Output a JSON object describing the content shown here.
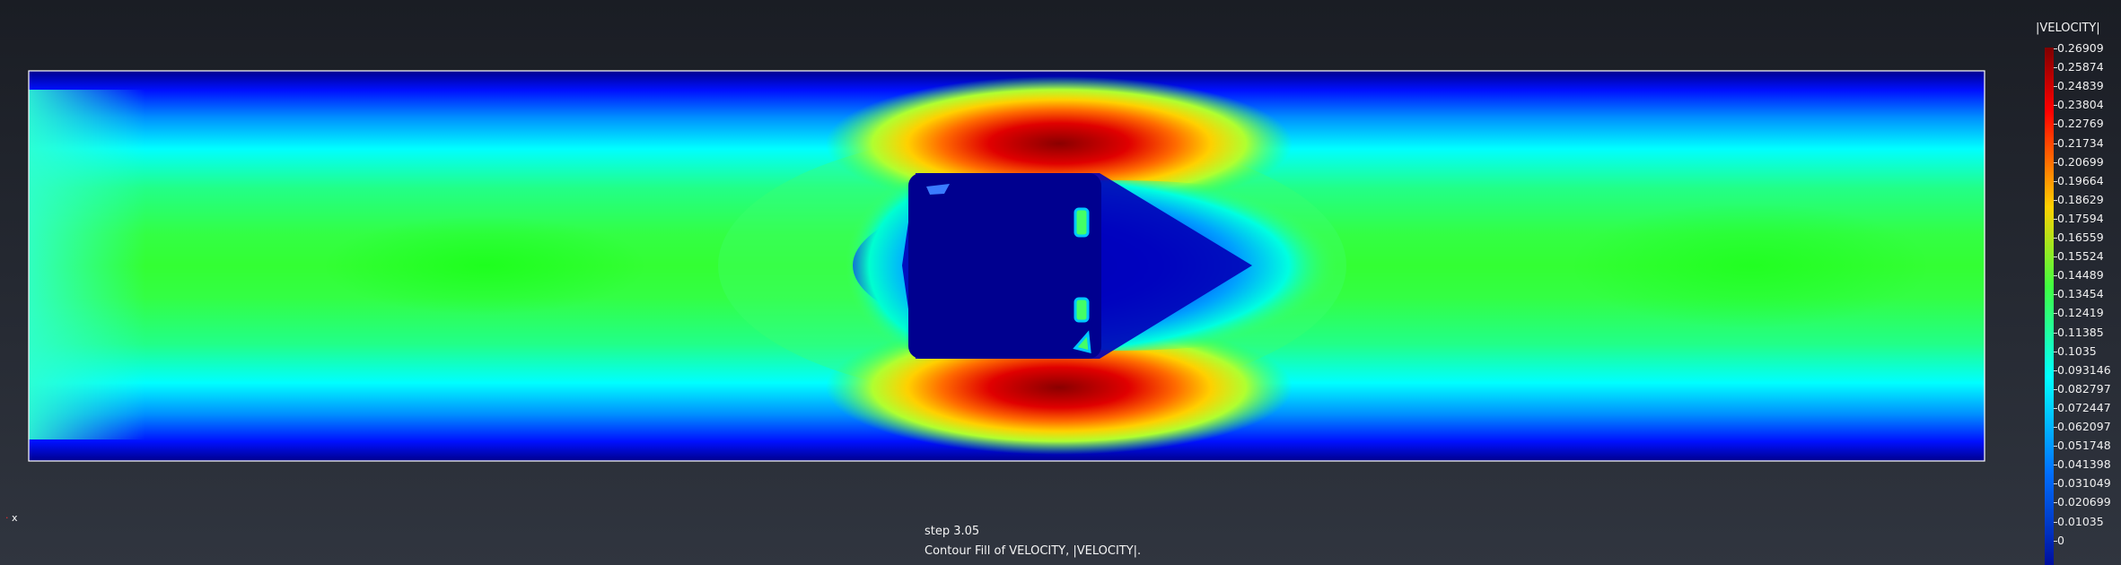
{
  "legend": {
    "title": "|VELOCITY|",
    "labels": [
      "0.26909",
      "0.25874",
      "0.24839",
      "0.23804",
      "0.22769",
      "0.21734",
      "0.20699",
      "0.19664",
      "0.18629",
      "0.17594",
      "0.16559",
      "0.15524",
      "0.14489",
      "0.13454",
      "0.12419",
      "0.11385",
      "0.1035",
      "0.093146",
      "0.082797",
      "0.072447",
      "0.062097",
      "0.051748",
      "0.041398",
      "0.031049",
      "0.020699",
      "0.01035",
      "0"
    ]
  },
  "footer": {
    "step": "step 3.05",
    "description": "Contour Fill of VELOCITY, |VELOCITY|."
  },
  "axis": {
    "x_label": "x"
  },
  "colors": {
    "channel_border": "#ffffff",
    "obstacle": "#00008f"
  }
}
